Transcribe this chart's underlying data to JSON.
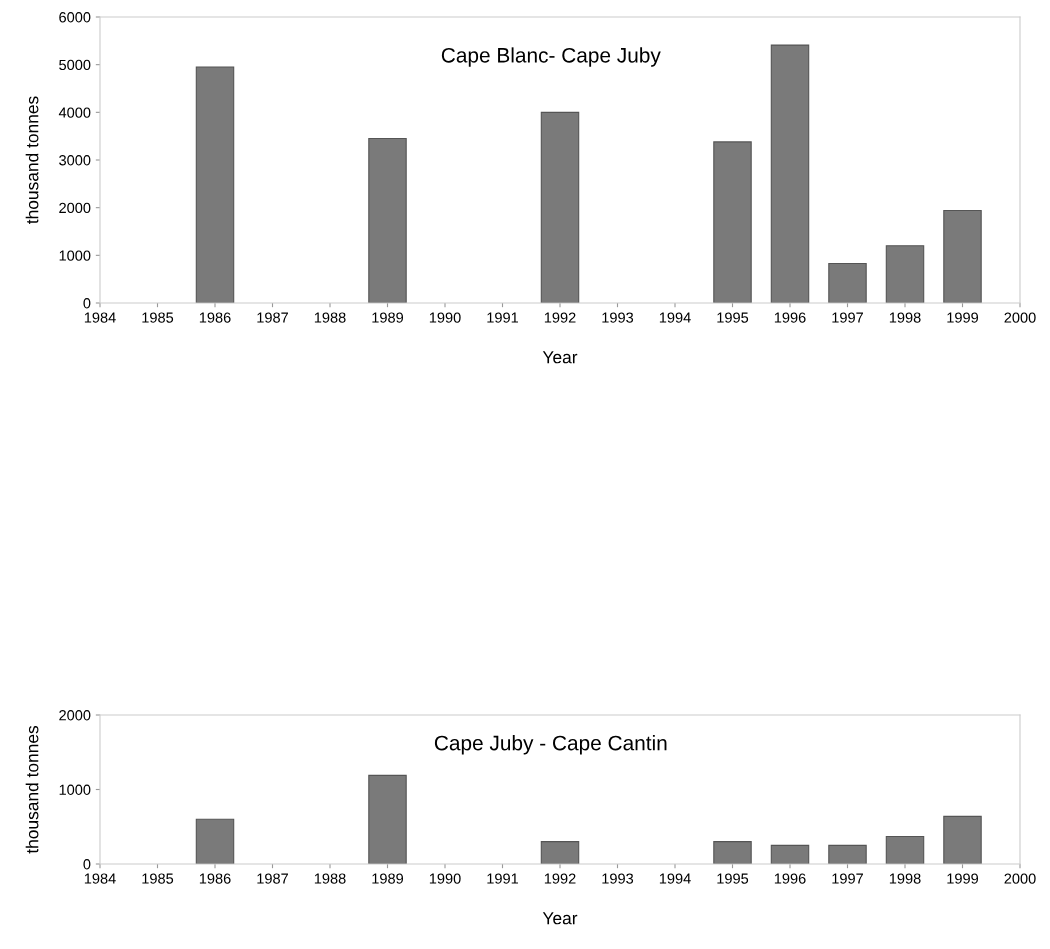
{
  "chart_data": [
    {
      "type": "bar",
      "title": "Cape Blanc- Cape Juby",
      "xlabel": "Year",
      "ylabel": "thousand tonnes",
      "x": [
        1986,
        1989,
        1992,
        1995,
        1996,
        1997,
        1998,
        1999
      ],
      "series": [
        {
          "color": "#7a7a7a",
          "values": [
            4950,
            3450,
            4000,
            3380,
            5410,
            830,
            1200,
            1940
          ]
        }
      ],
      "xlim": [
        1984,
        2000
      ],
      "xticks": [
        1984,
        1985,
        1986,
        1987,
        1988,
        1989,
        1990,
        1991,
        1992,
        1993,
        1994,
        1995,
        1996,
        1997,
        1998,
        1999,
        2000
      ],
      "ylim": [
        0,
        6000
      ],
      "yticks": [
        0,
        1000,
        2000,
        3000,
        4000,
        5000,
        6000
      ],
      "grid": false,
      "legend": false
    },
    {
      "type": "bar",
      "title": "Cape Juby - Cape Cantin",
      "xlabel": "Year",
      "ylabel": "thousand tonnes",
      "x": [
        1986,
        1989,
        1992,
        1995,
        1996,
        1997,
        1998,
        1999
      ],
      "series": [
        {
          "color": "#7a7a7a",
          "values": [
            600,
            1190,
            300,
            300,
            250,
            250,
            370,
            640
          ]
        }
      ],
      "xlim": [
        1984,
        2000
      ],
      "xticks": [
        1984,
        1985,
        1986,
        1987,
        1988,
        1989,
        1990,
        1991,
        1992,
        1993,
        1994,
        1995,
        1996,
        1997,
        1998,
        1999,
        2000
      ],
      "ylim": [
        0,
        2000
      ],
      "yticks": [
        0,
        1000,
        2000
      ],
      "grid": false,
      "legend": false
    }
  ]
}
